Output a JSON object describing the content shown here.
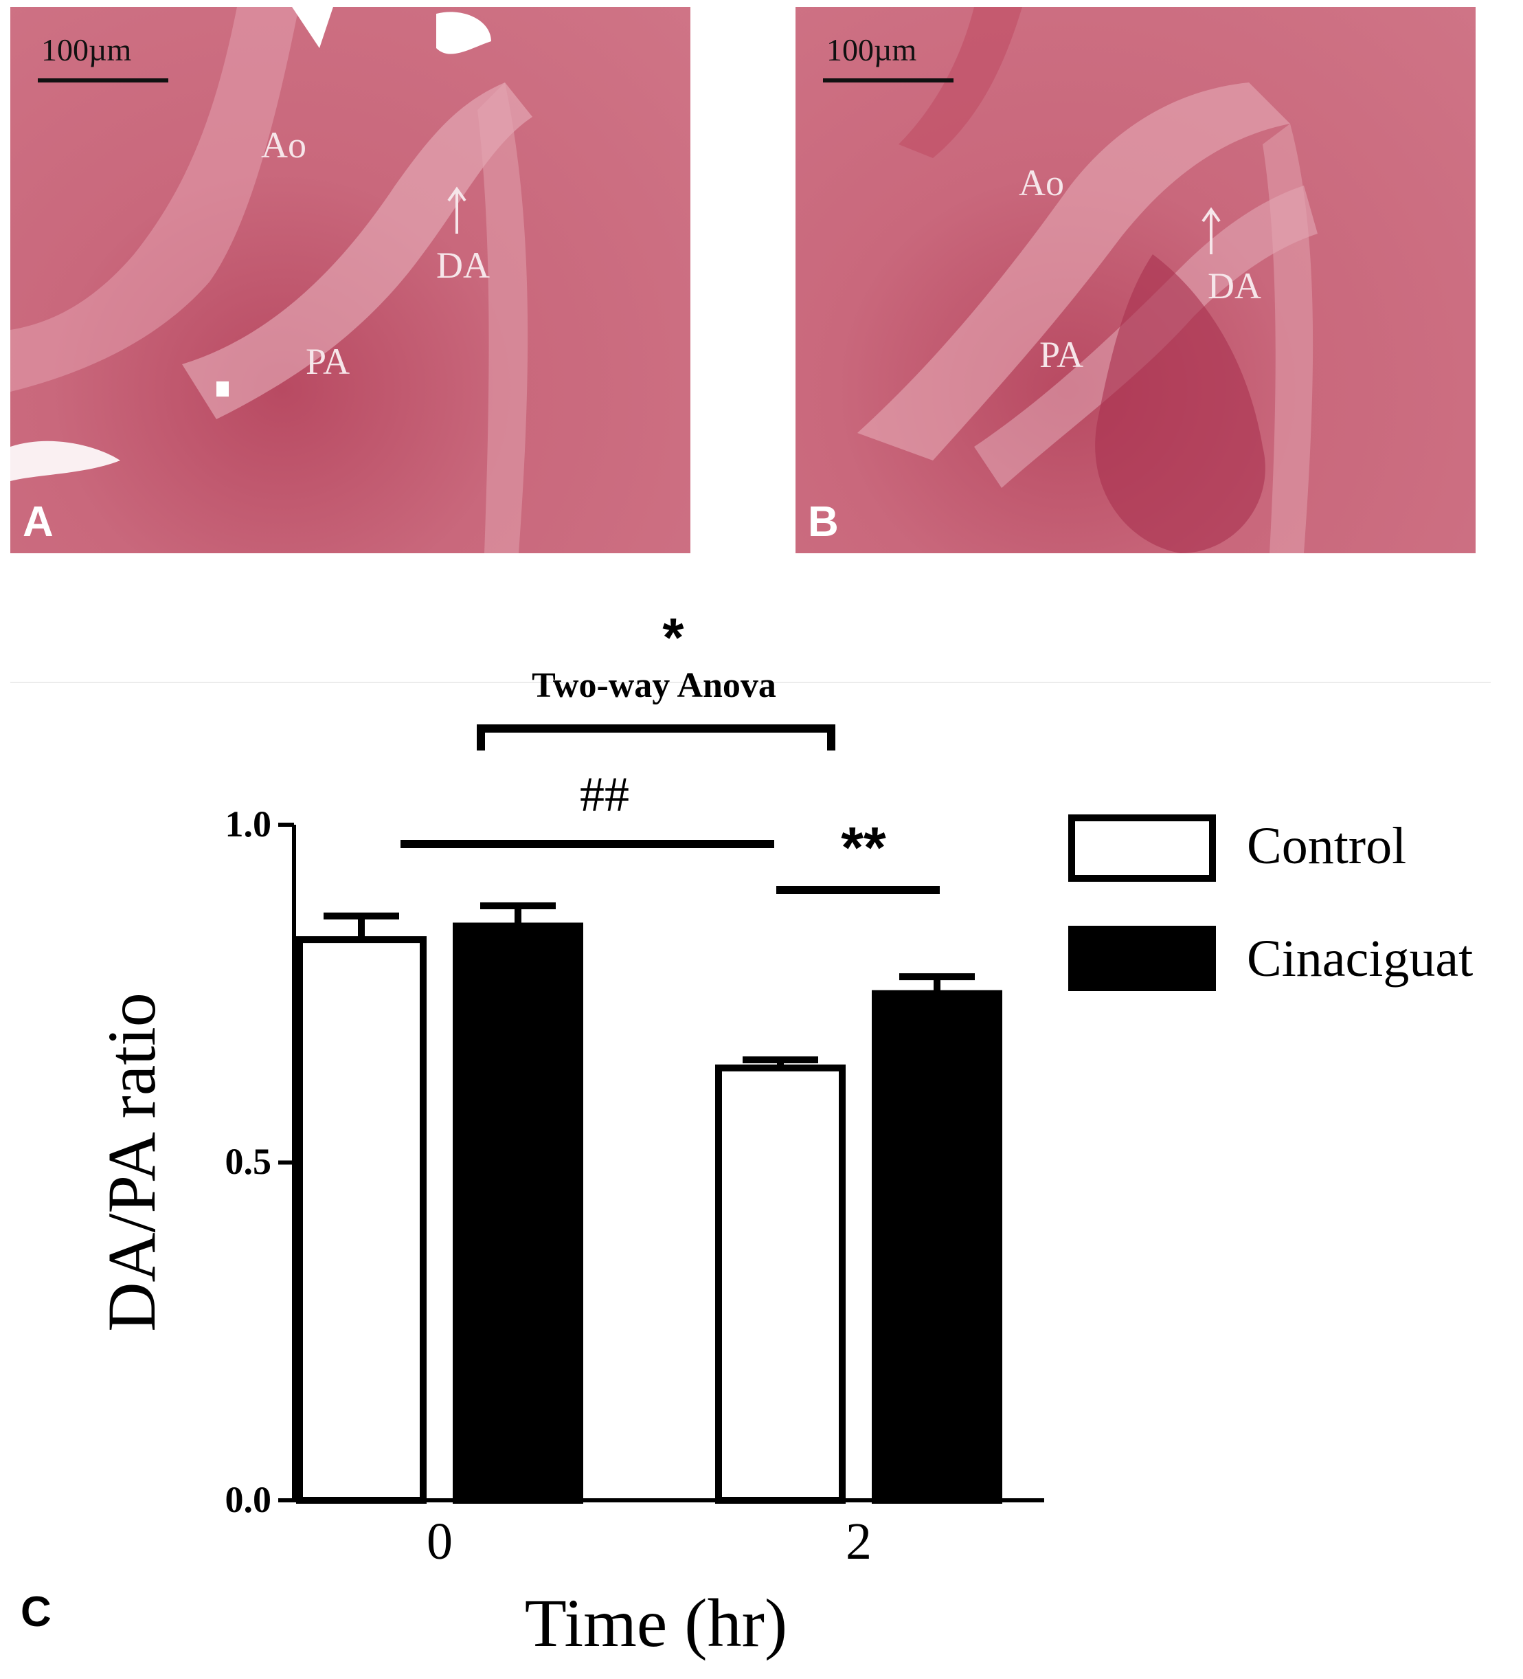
{
  "panel_a": {
    "panel_label": "A",
    "scale_label": "100µm",
    "labels": {
      "ao": "Ao",
      "da": "DA",
      "pa": "PA"
    }
  },
  "panel_b": {
    "panel_label": "B",
    "scale_label": "100µm",
    "labels": {
      "ao": "Ao",
      "da": "DA",
      "pa": "PA"
    }
  },
  "panel_c": {
    "panel_label": "C"
  },
  "chart_data": {
    "type": "bar",
    "categories": [
      "0",
      "2"
    ],
    "series": [
      {
        "name": "Control",
        "values": [
          0.83,
          0.64
        ],
        "errors": [
          0.035,
          0.012
        ],
        "fill": "#ffffff"
      },
      {
        "name": "Cinaciguat",
        "values": [
          0.85,
          0.75
        ],
        "errors": [
          0.03,
          0.025
        ],
        "fill": "#000000"
      }
    ],
    "xlabel": "Time (hr)",
    "ylabel": "DA/PA ratio",
    "ylim": [
      0.0,
      1.0
    ],
    "yticks": [
      "0.0",
      "0.5",
      "1.0"
    ],
    "legend_position": "right",
    "grid": false,
    "annotations": {
      "anova_star": "*",
      "anova_text": "Two-way Anova",
      "hash": "##",
      "double_star": "**"
    }
  }
}
